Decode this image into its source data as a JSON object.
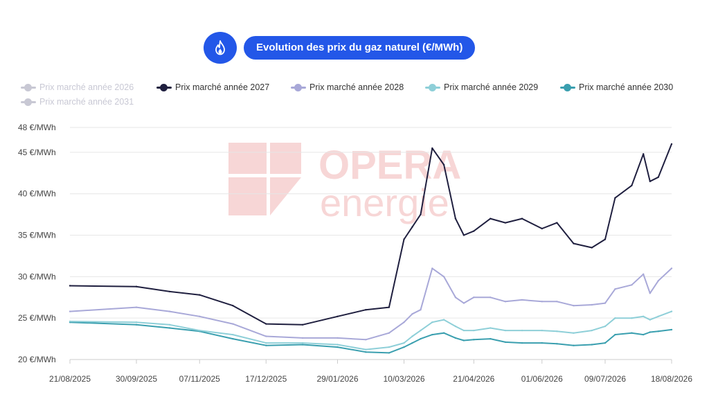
{
  "header": {
    "title": "Evolution des prix du gaz naturel (€/MWh)",
    "icon": "flame-icon",
    "accent": "#2357e8"
  },
  "legend": [
    {
      "name": "Prix marché année 2026",
      "color": "#c8c8d4",
      "visible": false
    },
    {
      "name": "Prix marché année 2027",
      "color": "#1f1f3f",
      "visible": true
    },
    {
      "name": "Prix marché année 2028",
      "color": "#a8a8d8",
      "visible": true
    },
    {
      "name": "Prix marché année 2029",
      "color": "#8ecfd8",
      "visible": true
    },
    {
      "name": "Prix marché année 2030",
      "color": "#3a9faf",
      "visible": true
    },
    {
      "name": "Prix marché année 2031",
      "color": "#c8c8d4",
      "visible": false
    }
  ],
  "watermark": {
    "line1": "OPERA",
    "line2": "energie",
    "color": "#f7d6d6"
  },
  "chart_data": {
    "type": "line",
    "title": "Evolution des prix du gaz naturel (€/MWh)",
    "xlabel": "",
    "ylabel": "",
    "ylim": [
      20,
      48
    ],
    "y_ticks": [
      {
        "value": 20,
        "label": "20 €/MWh"
      },
      {
        "value": 25,
        "label": "25 €/MWh"
      },
      {
        "value": 30,
        "label": "30 €/MWh"
      },
      {
        "value": 35,
        "label": "35 €/MWh"
      },
      {
        "value": 40,
        "label": "40 €/MWh"
      },
      {
        "value": 45,
        "label": "45 €/MWh"
      },
      {
        "value": 48,
        "label": "48 €/MWh"
      }
    ],
    "x_tick_labels": [
      "21/08/2025",
      "30/09/2025",
      "07/11/2025",
      "17/12/2025",
      "29/01/2026",
      "10/03/2026",
      "21/04/2026",
      "01/06/2026",
      "09/07/2026",
      "18/08/2026"
    ],
    "x": [
      "21/08/2025",
      "30/09/2025",
      "20/10/2025",
      "07/11/2025",
      "27/11/2025",
      "17/12/2025",
      "08/01/2026",
      "29/01/2026",
      "15/02/2026",
      "01/03/2026",
      "10/03/2026",
      "15/03/2026",
      "20/03/2026",
      "27/03/2026",
      "03/04/2026",
      "10/04/2026",
      "15/04/2026",
      "21/04/2026",
      "01/05/2026",
      "10/05/2026",
      "20/05/2026",
      "01/06/2026",
      "10/06/2026",
      "20/06/2026",
      "01/07/2026",
      "09/07/2026",
      "15/07/2026",
      "25/07/2026",
      "01/08/2026",
      "05/08/2026",
      "10/08/2026",
      "18/08/2026"
    ],
    "series": [
      {
        "name": "Prix marché année 2027",
        "values": [
          28.9,
          28.8,
          28.2,
          27.8,
          26.5,
          24.3,
          24.2,
          25.2,
          26.0,
          26.3,
          34.5,
          36.0,
          37.5,
          45.5,
          43.5,
          37.0,
          35.0,
          35.5,
          37.0,
          36.5,
          37.0,
          35.8,
          36.5,
          34.0,
          33.5,
          34.5,
          39.5,
          41.0,
          44.8,
          41.5,
          42.0,
          46.0
        ]
      },
      {
        "name": "Prix marché année 2028",
        "values": [
          25.8,
          26.3,
          25.8,
          25.2,
          24.3,
          22.8,
          22.6,
          22.6,
          22.4,
          23.2,
          24.5,
          25.5,
          26.0,
          31.0,
          30.0,
          27.5,
          26.8,
          27.5,
          27.5,
          27.0,
          27.2,
          27.0,
          27.0,
          26.5,
          26.6,
          26.8,
          28.5,
          29.0,
          30.3,
          28.0,
          29.5,
          31.0
        ]
      },
      {
        "name": "Prix marché année 2029",
        "values": [
          24.6,
          24.5,
          24.2,
          23.5,
          23.0,
          22.0,
          22.0,
          21.8,
          21.2,
          21.5,
          22.0,
          22.8,
          23.5,
          24.5,
          24.8,
          24.0,
          23.5,
          23.5,
          23.8,
          23.5,
          23.5,
          23.5,
          23.4,
          23.2,
          23.5,
          24.0,
          25.0,
          25.0,
          25.2,
          24.8,
          25.2,
          25.8
        ]
      },
      {
        "name": "Prix marché année 2030",
        "values": [
          24.5,
          24.2,
          23.8,
          23.4,
          22.5,
          21.7,
          21.8,
          21.5,
          20.9,
          20.8,
          21.5,
          22.0,
          22.5,
          23.0,
          23.2,
          22.6,
          22.3,
          22.4,
          22.5,
          22.1,
          22.0,
          22.0,
          21.9,
          21.7,
          21.8,
          22.0,
          23.0,
          23.2,
          23.0,
          23.3,
          23.4,
          23.6
        ]
      }
    ],
    "grid": true,
    "legend_position": "top-left"
  }
}
